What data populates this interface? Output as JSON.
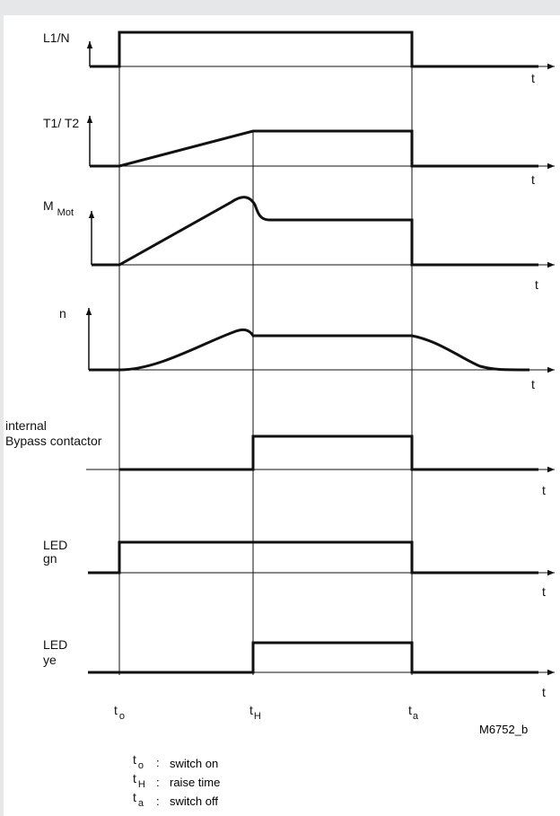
{
  "signals": [
    {
      "label": "L1/N"
    },
    {
      "label": "T1/ T2"
    },
    {
      "label": "M",
      "sub": "Mot"
    },
    {
      "label": "n"
    },
    {
      "label_line1": "internal",
      "label_line2": "Bypass contactor"
    },
    {
      "label_line1": "LED",
      "label_line2": "gn"
    },
    {
      "label_line1": "LED",
      "label_line2": "ye"
    }
  ],
  "axis_label": "t",
  "time_markers": [
    {
      "symbol": "t",
      "sub": "o"
    },
    {
      "symbol": "t",
      "sub": "H"
    },
    {
      "symbol": "t",
      "sub": "a"
    }
  ],
  "figure_code": "M6752_b",
  "legend": [
    {
      "symbol": "t",
      "sub": "o",
      "sep": ":",
      "text": "switch on"
    },
    {
      "symbol": "t",
      "sub": "H",
      "sep": ":",
      "text": "raise time"
    },
    {
      "symbol": "t",
      "sub": "a",
      "sep": ":",
      "text": "switch off"
    }
  ],
  "colors": {
    "background": "#e6e7e8",
    "panel": "#ffffff",
    "ink": "#111111"
  }
}
